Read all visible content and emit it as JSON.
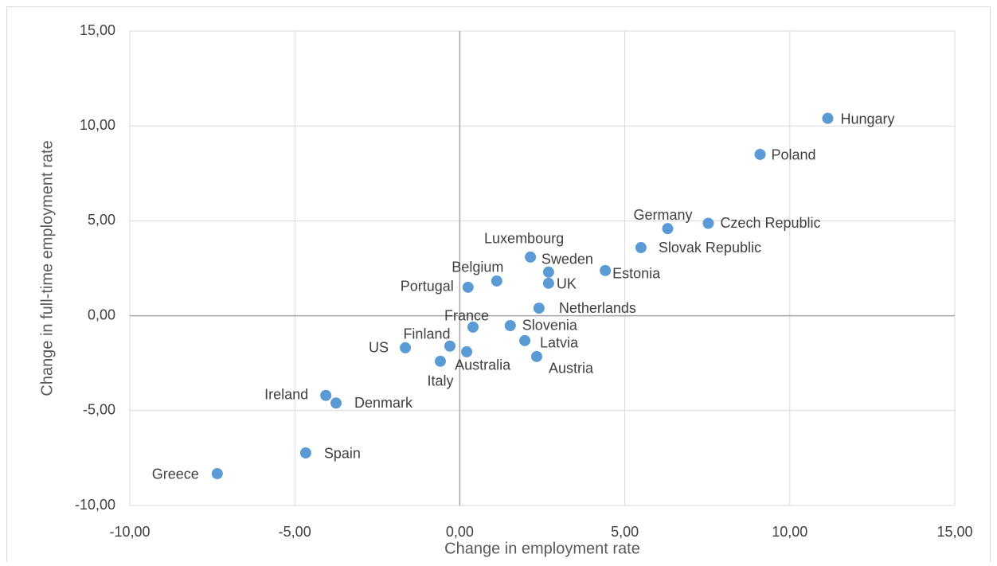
{
  "chart_data": {
    "type": "scatter",
    "x_label": "Change in employment rate",
    "y_label": "Change in full-time employment rate",
    "labels": [
      "Hungary",
      "Poland",
      "Czech Republic",
      "Germany",
      "Slovak Republic",
      "Estonia",
      "Luxembourg",
      "Sweden",
      "UK",
      "Belgium",
      "Portugal",
      "Netherlands",
      "France",
      "Slovenia",
      "Latvia",
      "Austria",
      "Finland",
      "Australia",
      "Italy",
      "US",
      "Ireland",
      "Denmark",
      "Spain",
      "Greece"
    ],
    "x": [
      11.15,
      9.1,
      7.53,
      6.3,
      5.49,
      4.41,
      2.14,
      2.69,
      2.69,
      1.12,
      0.25,
      2.4,
      0.4,
      1.53,
      1.97,
      2.33,
      -0.3,
      0.21,
      -0.59,
      -1.65,
      -4.06,
      -3.75,
      -4.67,
      -7.35
    ],
    "values": [
      10.4,
      8.5,
      4.87,
      4.59,
      3.59,
      2.38,
      3.09,
      2.3,
      1.71,
      1.83,
      1.5,
      0.4,
      -0.6,
      -0.52,
      -1.31,
      -2.15,
      -1.6,
      -1.9,
      -2.4,
      -1.69,
      -4.2,
      -4.6,
      -7.23,
      -8.32
    ],
    "color": "#5b9bd5",
    "xlim": [
      -10,
      15
    ],
    "ylim": [
      -10,
      15
    ],
    "xticks": [
      {
        "value": -10,
        "label": "-10,00"
      },
      {
        "value": -5,
        "label": "-5,00"
      },
      {
        "value": 0,
        "label": "0,00"
      },
      {
        "value": 5,
        "label": "5,00"
      },
      {
        "value": 10,
        "label": "10,00"
      },
      {
        "value": 15,
        "label": "15,00"
      }
    ],
    "yticks": [
      {
        "value": -10,
        "label": "-10,00"
      },
      {
        "value": -5,
        "label": "-5,00"
      },
      {
        "value": 0,
        "label": "0,00"
      },
      {
        "value": 5,
        "label": "5,00"
      },
      {
        "value": 10,
        "label": "10,00"
      },
      {
        "value": 15,
        "label": "15,00"
      }
    ],
    "grid": true
  }
}
